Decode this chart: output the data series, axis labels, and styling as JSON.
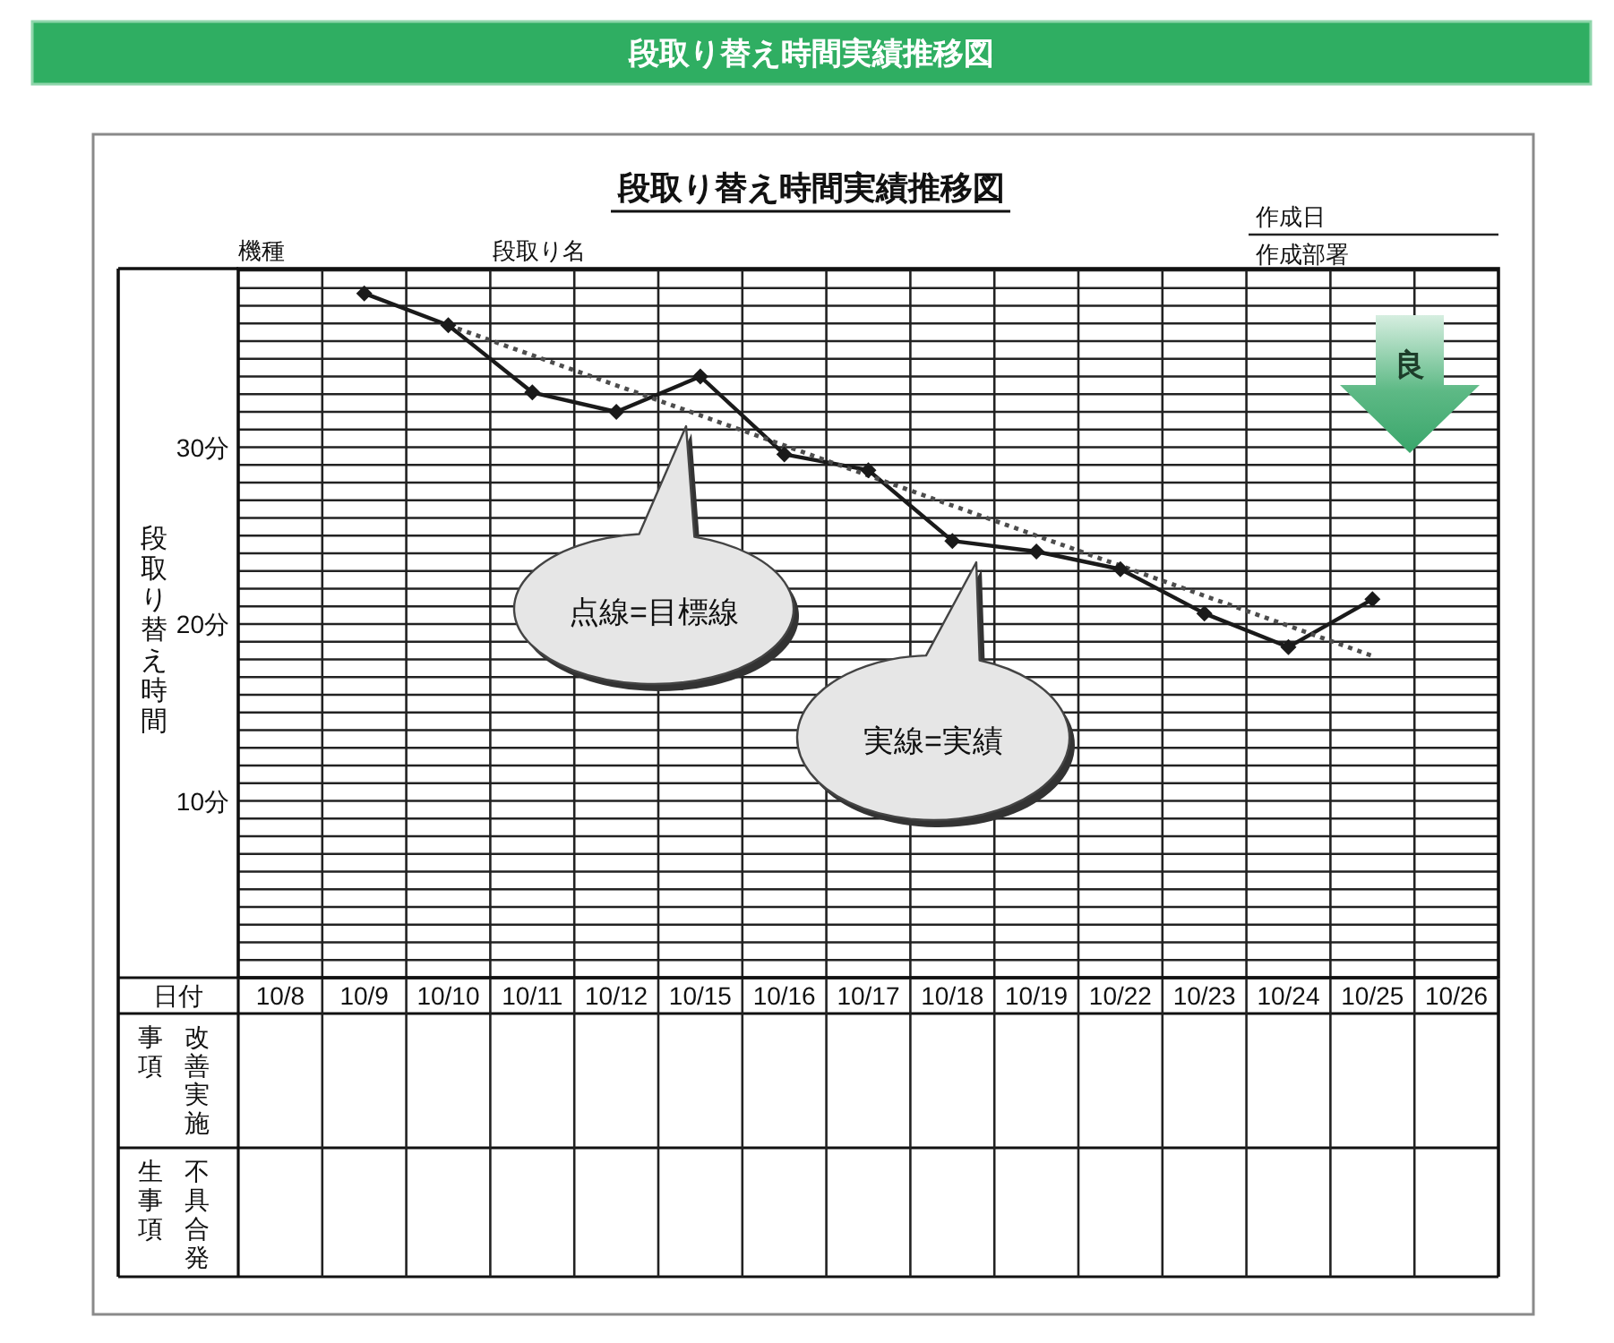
{
  "chart_data": {
    "type": "line",
    "title": "段取り替え時間実績推移図",
    "subtitle": "段取り替え時間実績推移図",
    "xlabel": "日付",
    "ylabel": "段取り替え時間",
    "categories": [
      "10/8",
      "10/9",
      "10/10",
      "10/11",
      "10/12",
      "10/15",
      "10/16",
      "10/17",
      "10/18",
      "10/19",
      "10/22",
      "10/23",
      "10/24",
      "10/25",
      "10/26"
    ],
    "series": [
      {
        "color": "#1a1a1a",
        "marker": "diamond",
        "line_style": "solid",
        "values": [
          null,
          38.7,
          36.9,
          33.1,
          32.0,
          34.0,
          29.6,
          28.7,
          24.7,
          24.1,
          23.1,
          20.6,
          18.7,
          21.4,
          null
        ]
      },
      {
        "color": "#4d4d4d",
        "marker": "none",
        "line_style": "dotted",
        "x": [
          "10/10",
          "10/25"
        ],
        "values": [
          36.9,
          18.2
        ]
      }
    ],
    "ylim": [
      0,
      40
    ],
    "yticks": [
      {
        "value": 0,
        "label": null
      },
      {
        "value": 1,
        "label": null
      },
      {
        "value": 2,
        "label": null
      },
      {
        "value": 3,
        "label": null
      },
      {
        "value": 4,
        "label": null
      },
      {
        "value": 5,
        "label": null
      },
      {
        "value": 6,
        "label": null
      },
      {
        "value": 7,
        "label": null
      },
      {
        "value": 8,
        "label": null
      },
      {
        "value": 9,
        "label": null
      },
      {
        "value": 10,
        "label": "10分"
      },
      {
        "value": 11,
        "label": null
      },
      {
        "value": 12,
        "label": null
      },
      {
        "value": 13,
        "label": null
      },
      {
        "value": 14,
        "label": null
      },
      {
        "value": 15,
        "label": null
      },
      {
        "value": 16,
        "label": null
      },
      {
        "value": 17,
        "label": null
      },
      {
        "value": 18,
        "label": null
      },
      {
        "value": 19,
        "label": null
      },
      {
        "value": 20,
        "label": "20分"
      },
      {
        "value": 21,
        "label": null
      },
      {
        "value": 22,
        "label": null
      },
      {
        "value": 23,
        "label": null
      },
      {
        "value": 24,
        "label": null
      },
      {
        "value": 25,
        "label": null
      },
      {
        "value": 26,
        "label": null
      },
      {
        "value": 27,
        "label": null
      },
      {
        "value": 28,
        "label": null
      },
      {
        "value": 29,
        "label": null
      },
      {
        "value": 30,
        "label": "30分"
      },
      {
        "value": 31,
        "label": null
      },
      {
        "value": 32,
        "label": null
      },
      {
        "value": 33,
        "label": null
      },
      {
        "value": 34,
        "label": null
      },
      {
        "value": 35,
        "label": null
      },
      {
        "value": 36,
        "label": null
      },
      {
        "value": 37,
        "label": null
      },
      {
        "value": 38,
        "label": null
      },
      {
        "value": 39,
        "label": null
      },
      {
        "value": 40,
        "label": null
      }
    ],
    "grid": true,
    "annotations": [
      "機種",
      "段取り名",
      "作成日",
      "作成部署",
      "点線=目標線",
      "実線=実績",
      "良",
      "改善実施事項",
      "不具合発生事項"
    ]
  }
}
